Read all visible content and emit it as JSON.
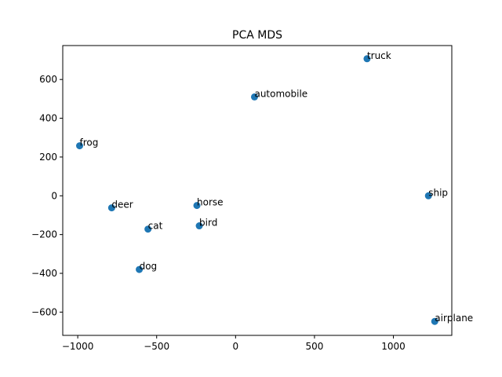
{
  "chart_data": {
    "type": "scatter",
    "title": "PCA MDS",
    "xlabel": "",
    "ylabel": "",
    "xlim": [
      -1095,
      1370
    ],
    "ylim": [
      -720,
      775
    ],
    "xticks": [
      -1000,
      -500,
      0,
      500,
      1000
    ],
    "yticks": [
      -600,
      -400,
      -200,
      0,
      200,
      400,
      600
    ],
    "grid": false,
    "marker_color": "#1f77b4",
    "points": [
      {
        "label": "truck",
        "x": 833,
        "y": 707
      },
      {
        "label": "automobile",
        "x": 120,
        "y": 510
      },
      {
        "label": "frog",
        "x": -988,
        "y": 258
      },
      {
        "label": "ship",
        "x": 1222,
        "y": 0
      },
      {
        "label": "deer",
        "x": -785,
        "y": -62
      },
      {
        "label": "horse",
        "x": -245,
        "y": -50
      },
      {
        "label": "cat",
        "x": -555,
        "y": -172
      },
      {
        "label": "bird",
        "x": -230,
        "y": -155
      },
      {
        "label": "dog",
        "x": -610,
        "y": -380
      },
      {
        "label": "airplane",
        "x": 1262,
        "y": -648
      }
    ]
  }
}
